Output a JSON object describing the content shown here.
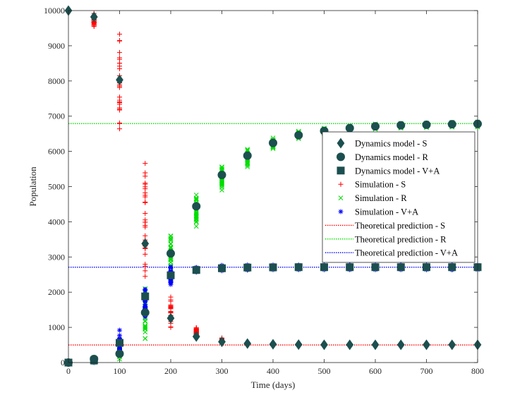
{
  "chart_data": {
    "type": "scatter",
    "title": "",
    "xlabel": "Time (days)",
    "ylabel": "Population",
    "xlim": [
      0,
      800
    ],
    "ylim": [
      0,
      10000
    ],
    "xticks": [
      0,
      100,
      200,
      300,
      400,
      500,
      600,
      700,
      800
    ],
    "yticks": [
      0,
      1000,
      2000,
      3000,
      4000,
      5000,
      6000,
      7000,
      8000,
      9000,
      10000
    ],
    "grid": false,
    "legend_position": "right",
    "x": [
      0,
      50,
      100,
      150,
      200,
      250,
      300,
      350,
      400,
      450,
      500,
      550,
      600,
      650,
      700,
      750,
      800
    ],
    "dynamics": [
      {
        "name": "Dynamics model - S",
        "marker": "diamond",
        "color": "#1c4f4f",
        "values": [
          10000,
          9820,
          8030,
          3380,
          1260,
          740,
          590,
          540,
          520,
          510,
          505,
          505,
          505,
          505,
          505,
          505,
          505
        ]
      },
      {
        "name": "Dynamics model - R",
        "marker": "circle",
        "color": "#1c4f4f",
        "values": [
          0,
          100,
          250,
          1420,
          3100,
          4440,
          5330,
          5880,
          6240,
          6460,
          6580,
          6660,
          6710,
          6740,
          6755,
          6770,
          6780
        ]
      },
      {
        "name": "Dynamics model - V+A",
        "marker": "square",
        "color": "#1c4f4f",
        "values": [
          0,
          60,
          560,
          1880,
          2480,
          2630,
          2680,
          2700,
          2705,
          2710,
          2710,
          2710,
          2710,
          2710,
          2710,
          2710,
          2710
        ]
      }
    ],
    "simulations": [
      {
        "name": "Simulation - S",
        "marker": "plus",
        "color": "#ff0000",
        "ranges": [
          [
            10000,
            10000
          ],
          [
            9550,
            9920
          ],
          [
            6640,
            9330
          ],
          [
            2450,
            5660
          ],
          [
            1000,
            1860
          ],
          [
            760,
            990
          ],
          [
            560,
            700
          ],
          [
            500,
            580
          ],
          [
            480,
            560
          ],
          [
            470,
            550
          ],
          [
            470,
            540
          ],
          [
            470,
            540
          ],
          [
            470,
            540
          ],
          [
            470,
            540
          ],
          [
            470,
            540
          ],
          [
            470,
            540
          ],
          [
            470,
            540
          ]
        ]
      },
      {
        "name": "Simulation - R",
        "marker": "cross",
        "color": "#00dd00",
        "ranges": [
          [
            0,
            0
          ],
          [
            0,
            150
          ],
          [
            100,
            580
          ],
          [
            680,
            2100
          ],
          [
            2400,
            3600
          ],
          [
            3870,
            4760
          ],
          [
            4900,
            5560
          ],
          [
            5560,
            6060
          ],
          [
            6080,
            6380
          ],
          [
            6360,
            6570
          ],
          [
            6500,
            6660
          ],
          [
            6590,
            6730
          ],
          [
            6630,
            6780
          ],
          [
            6660,
            6800
          ],
          [
            6680,
            6810
          ],
          [
            6690,
            6830
          ],
          [
            6690,
            6840
          ]
        ]
      },
      {
        "name": "Simulation - V+A",
        "marker": "asterisk",
        "color": "#0000ff",
        "ranges": [
          [
            0,
            0
          ],
          [
            0,
            120
          ],
          [
            250,
            920
          ],
          [
            1300,
            2080
          ],
          [
            2220,
            2720
          ],
          [
            2570,
            2700
          ],
          [
            2610,
            2760
          ],
          [
            2630,
            2770
          ],
          [
            2640,
            2770
          ],
          [
            2640,
            2770
          ],
          [
            2640,
            2770
          ],
          [
            2640,
            2770
          ],
          [
            2640,
            2770
          ],
          [
            2640,
            2770
          ],
          [
            2640,
            2770
          ],
          [
            2640,
            2770
          ],
          [
            2640,
            2770
          ]
        ]
      }
    ],
    "theoretical": [
      {
        "name": "Theoretical prediction - S",
        "value": 500,
        "color": "#ff0000"
      },
      {
        "name": "Theoretical prediction - R",
        "value": 6790,
        "color": "#00dd00"
      },
      {
        "name": "Theoretical prediction - V+A",
        "value": 2710,
        "color": "#0000ff"
      }
    ]
  }
}
